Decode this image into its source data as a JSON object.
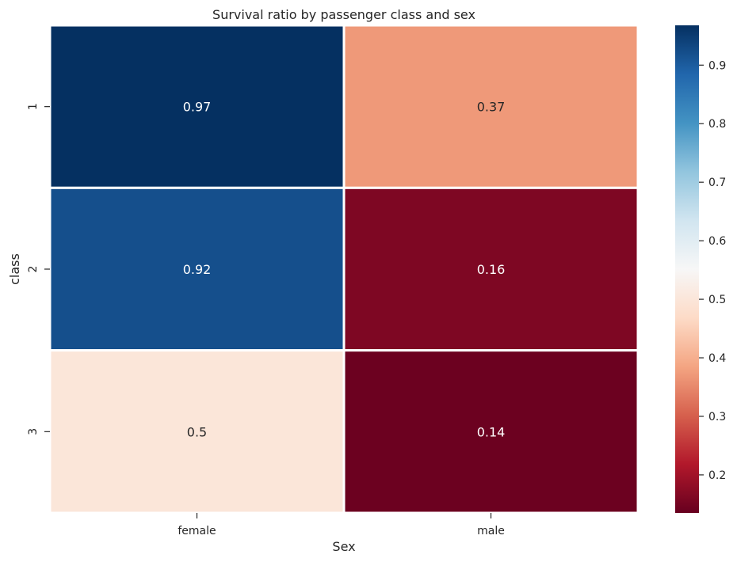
{
  "chart_data": {
    "type": "heatmap",
    "title": "Survival ratio by passenger class and sex",
    "xlabel": "Sex",
    "ylabel": "class",
    "x_categories": [
      "female",
      "male"
    ],
    "y_categories": [
      "1",
      "2",
      "3"
    ],
    "values": [
      [
        0.97,
        0.37
      ],
      [
        0.92,
        0.16
      ],
      [
        0.5,
        0.14
      ]
    ],
    "cell_labels": [
      [
        "0.97",
        "0.37"
      ],
      [
        "0.92",
        "0.16"
      ],
      [
        "0.5",
        "0.14"
      ]
    ],
    "colormap": "RdBu",
    "colorbar": {
      "vmin": 0.135,
      "vmax": 0.968,
      "ticks": [
        0.2,
        0.3,
        0.4,
        0.5,
        0.6,
        0.7,
        0.8,
        0.9
      ],
      "tick_labels": [
        "0.2",
        "0.3",
        "0.4",
        "0.5",
        "0.6",
        "0.7",
        "0.8",
        "0.9"
      ]
    },
    "cell_border_color": "#ffffff"
  }
}
